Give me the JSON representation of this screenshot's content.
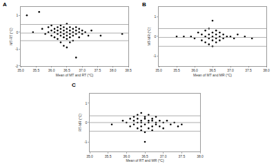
{
  "chart_data": [
    {
      "type": "scatter",
      "title": "A",
      "x_label": "Mean of MT and RT (°C)",
      "y_label": "MT-RT (°C)",
      "color": "#000000",
      "marker": "circle",
      "grid": false,
      "x": [
        35.2,
        35.4,
        35.6,
        35.7,
        35.8,
        35.9,
        35.9,
        36.0,
        36.0,
        36.0,
        36.1,
        36.1,
        36.1,
        36.2,
        36.2,
        36.2,
        36.2,
        36.3,
        36.3,
        36.3,
        36.3,
        36.3,
        36.4,
        36.4,
        36.4,
        36.4,
        36.4,
        36.5,
        36.5,
        36.5,
        36.5,
        36.5,
        36.5,
        36.6,
        36.6,
        36.6,
        36.6,
        36.6,
        36.7,
        36.7,
        36.7,
        36.7,
        36.8,
        36.8,
        36.8,
        36.8,
        36.9,
        36.9,
        36.9,
        37.0,
        37.0,
        37.1,
        37.2,
        37.3,
        37.6,
        38.3
      ],
      "values": [
        1.0,
        0.0,
        1.2,
        0.2,
        -0.1,
        0.0,
        0.3,
        -0.2,
        0.1,
        0.4,
        -0.3,
        0.0,
        0.2,
        -0.1,
        0.1,
        0.3,
        -0.4,
        -0.2,
        0.0,
        0.2,
        0.4,
        -0.6,
        -0.1,
        0.1,
        -0.3,
        0.3,
        -0.8,
        0.0,
        -0.2,
        0.2,
        -0.4,
        0.5,
        -0.9,
        -0.1,
        0.1,
        -0.3,
        0.3,
        -0.6,
        0.0,
        -0.2,
        0.2,
        -0.5,
        -0.1,
        0.1,
        -1.5,
        0.3,
        0.0,
        -0.3,
        0.2,
        -0.1,
        0.1,
        0.0,
        -0.2,
        0.1,
        -0.2,
        -0.1
      ],
      "reference_lines": [
        0.46,
        -0.05,
        -0.5
      ],
      "xlim": [
        35.0,
        38.5
      ],
      "xticks": [
        {
          "value": 35.0,
          "label": "35.0"
        },
        {
          "value": 35.5,
          "label": "35.5"
        },
        {
          "value": 36.0,
          "label": "36.0"
        },
        {
          "value": 36.5,
          "label": "36.5"
        },
        {
          "value": 37.0,
          "label": "37.0"
        },
        {
          "value": 37.5,
          "label": "37.5"
        },
        {
          "value": 38.0,
          "label": "38.0"
        },
        {
          "value": 38.5,
          "label": "38.5"
        }
      ],
      "ylim": [
        -2,
        1.5
      ],
      "yticks": [
        -2,
        -1,
        0,
        1
      ]
    },
    {
      "type": "scatter",
      "title": "B",
      "x_label": "Mean of MT and MR (°C)",
      "y_label": "MT-MR (°C)",
      "color": "#000000",
      "marker": "circle",
      "grid": false,
      "x": [
        35.5,
        35.7,
        35.9,
        36.0,
        36.1,
        36.2,
        36.2,
        36.3,
        36.3,
        36.3,
        36.4,
        36.4,
        36.4,
        36.4,
        36.5,
        36.5,
        36.5,
        36.5,
        36.5,
        36.6,
        36.6,
        36.6,
        36.6,
        36.7,
        36.7,
        36.7,
        36.8,
        36.8,
        36.9,
        37.0,
        37.1,
        37.2,
        37.4,
        37.6
      ],
      "values": [
        0.0,
        0.0,
        0.0,
        -0.1,
        0.2,
        0.1,
        -0.2,
        0.0,
        0.3,
        -0.3,
        0.1,
        -0.1,
        0.4,
        -0.4,
        0.0,
        0.2,
        -0.2,
        0.8,
        -0.5,
        0.1,
        -0.1,
        0.3,
        -0.3,
        0.0,
        0.2,
        -0.2,
        0.1,
        -0.1,
        0.0,
        0.0,
        -0.1,
        0.1,
        0.0,
        -0.1
      ],
      "reference_lines": [
        0.4,
        -0.05,
        -0.5
      ],
      "xlim": [
        35.0,
        38.0
      ],
      "xticks": [
        {
          "value": 35.0,
          "label": "35.0"
        },
        {
          "value": 35.5,
          "label": "35.5"
        },
        {
          "value": 36.0,
          "label": "36.0"
        },
        {
          "value": 36.5,
          "label": "36.5"
        },
        {
          "value": 37.0,
          "label": "37.0"
        },
        {
          "value": 37.5,
          "label": "37.5"
        },
        {
          "value": 38.0,
          "label": "38.0"
        }
      ],
      "ylim": [
        -1.5,
        1.5
      ],
      "yticks": [
        -1,
        0,
        1
      ]
    },
    {
      "type": "scatter",
      "title": "C",
      "x_label": "Mean of RT and MR (°C)",
      "y_label": "RT-MR (°C)",
      "color": "#000000",
      "marker": "circle",
      "grid": false,
      "x": [
        35.6,
        35.9,
        36.0,
        36.1,
        36.1,
        36.2,
        36.2,
        36.2,
        36.3,
        36.3,
        36.3,
        36.3,
        36.4,
        36.4,
        36.4,
        36.4,
        36.4,
        36.5,
        36.5,
        36.5,
        36.5,
        36.5,
        36.6,
        36.6,
        36.6,
        36.6,
        36.7,
        36.7,
        36.7,
        36.7,
        36.8,
        36.8,
        36.8,
        36.9,
        36.9,
        37.0,
        37.0,
        37.1,
        37.2,
        37.3,
        37.4,
        37.5
      ],
      "values": [
        -0.1,
        0.1,
        0.0,
        0.2,
        -0.2,
        0.3,
        -0.1,
        0.1,
        0.0,
        0.4,
        -0.3,
        0.2,
        -0.2,
        0.1,
        0.5,
        -0.4,
        0.0,
        0.3,
        -0.1,
        -1.0,
        0.2,
        -0.5,
        0.1,
        -0.3,
        0.4,
        0.0,
        -0.2,
        0.2,
        -0.4,
        0.1,
        0.0,
        -0.1,
        0.3,
        -0.2,
        0.1,
        0.0,
        -0.3,
        0.1,
        -0.1,
        0.0,
        -0.2,
        -0.1
      ],
      "reference_lines": [
        0.35,
        0.0,
        -0.45
      ],
      "xlim": [
        35.0,
        38.0
      ],
      "xticks": [
        {
          "value": 35.0,
          "label": "35.0"
        },
        {
          "value": 35.5,
          "label": "35.5"
        },
        {
          "value": 36.0,
          "label": "36.0"
        },
        {
          "value": 36.5,
          "label": "36.5"
        },
        {
          "value": 37.0,
          "label": "37.0"
        },
        {
          "value": 37.5,
          "label": "37.5"
        },
        {
          "value": 38.0,
          "label": "38.0"
        }
      ],
      "ylim": [
        -1.5,
        1.5
      ],
      "yticks": [
        -1,
        0,
        1
      ]
    }
  ]
}
